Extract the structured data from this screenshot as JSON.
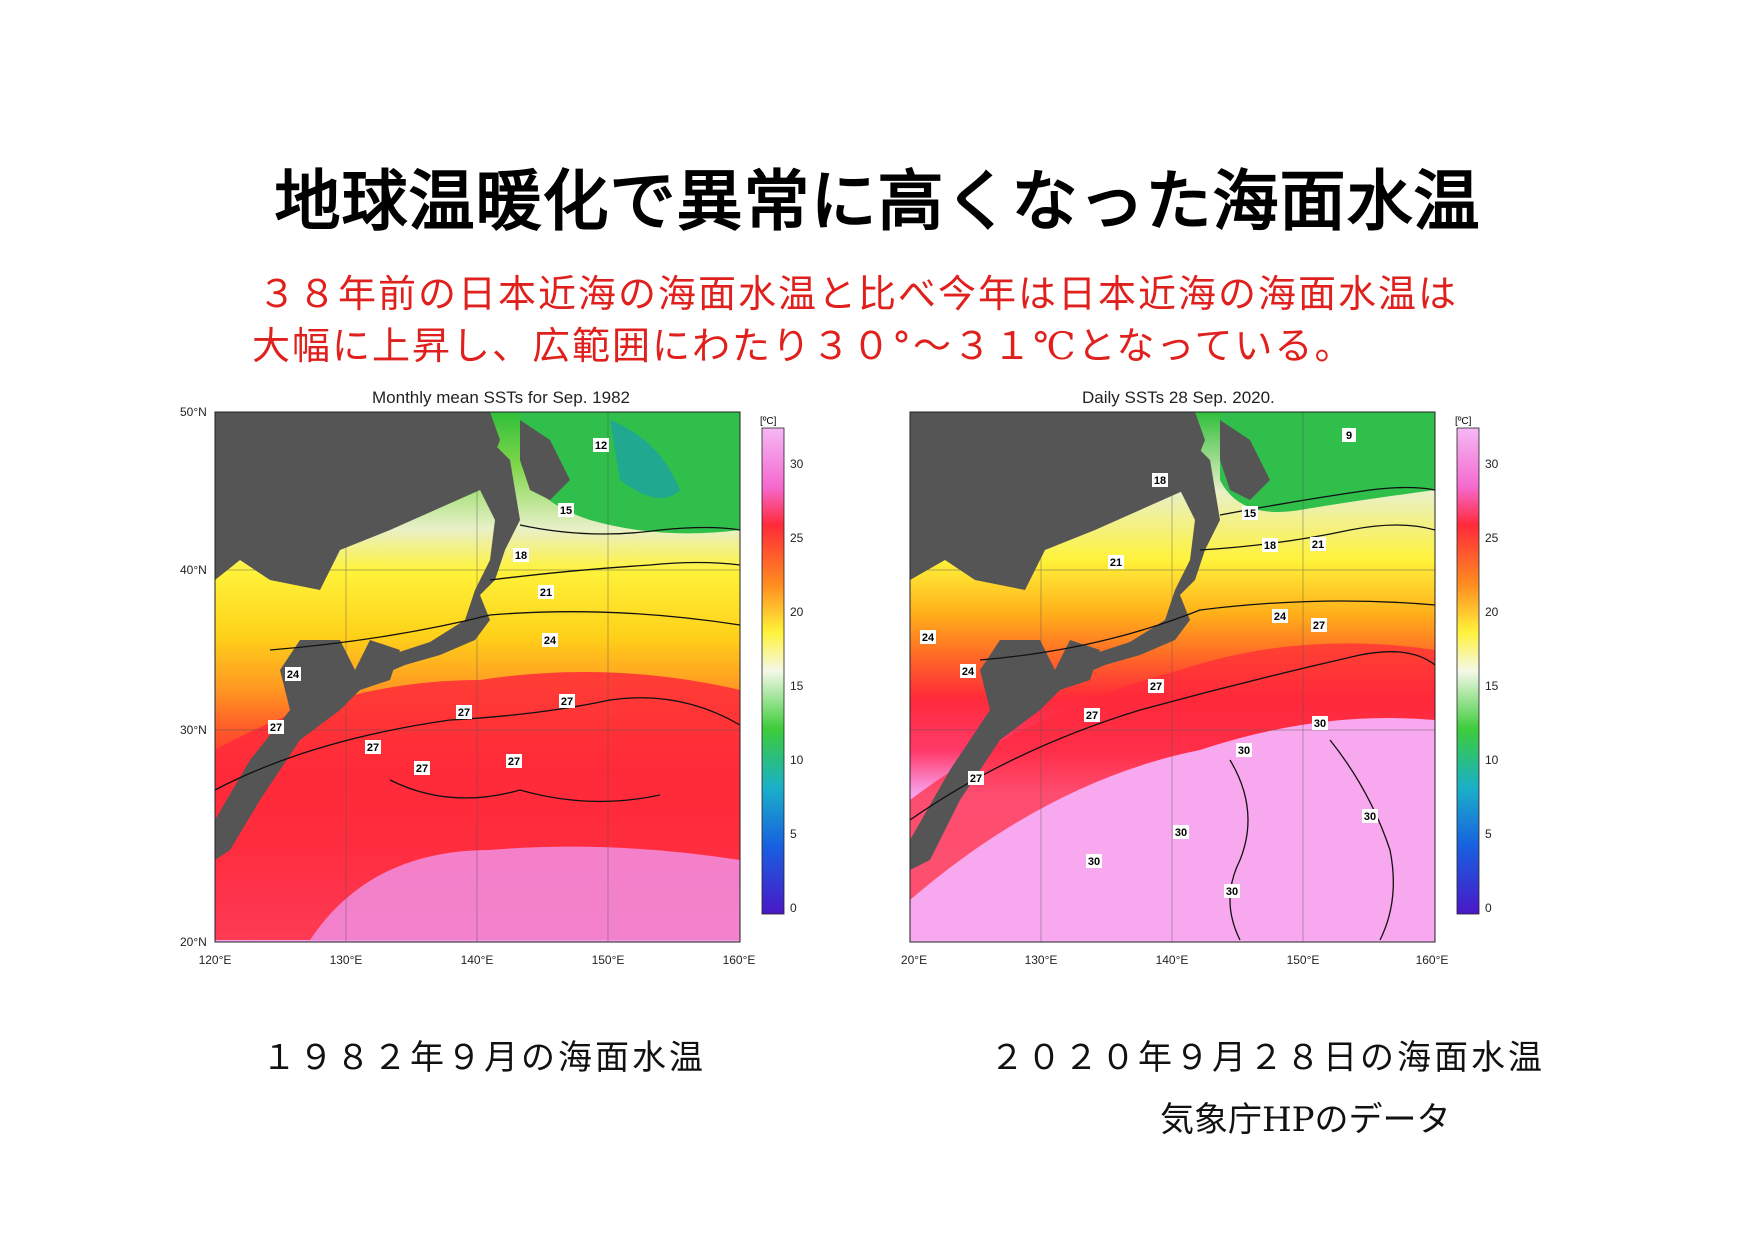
{
  "title": "地球温暖化で異常に高くなった海面水温",
  "subtitle": {
    "line1": "３８年前の日本近海の海面水温と比べ今年は日本近海の海面水温は",
    "line2": "大幅に上昇し、広範囲にわたり３０°～３１℃となっている。"
  },
  "maps": [
    {
      "title": "Monthly mean SSTs for Sep. 1982",
      "caption": "１９８２年９月の海面水温",
      "lat_labels": [
        "50°N",
        "40°N",
        "30°N",
        "20°N"
      ],
      "lon_labels": [
        "120°E",
        "130°E",
        "140°E",
        "150°E",
        "160°E"
      ],
      "contour_labels": [
        "12",
        "15",
        "18",
        "21",
        "24",
        "24",
        "27",
        "27",
        "27",
        "27",
        "27",
        "27"
      ]
    },
    {
      "title": "Daily SSTs 28 Sep. 2020.",
      "caption": "２０２０年９月２８日の海面水温",
      "lat_labels": [],
      "lon_labels": [
        "20°E",
        "130°E",
        "140°E",
        "150°E",
        "160°E"
      ],
      "contour_labels": [
        "9",
        "18",
        "15",
        "18",
        "21",
        "21",
        "24",
        "27",
        "24",
        "24",
        "27",
        "27",
        "27",
        "30",
        "30",
        "30",
        "30",
        "30",
        "30"
      ]
    }
  ],
  "colorbar": {
    "unit": "[ºC]",
    "ticks": [
      "30",
      "25",
      "20",
      "15",
      "10",
      "5",
      "0"
    ],
    "colors": [
      "#f5a0f0",
      "#ff2a3a",
      "#ff8a20",
      "#fff23a",
      "#3ccc3a",
      "#1ab0c8",
      "#1818c8"
    ]
  },
  "source": "気象庁HPのデータ",
  "colors": {
    "title": "#000000",
    "subtitle": "#e0201c",
    "land": "#555555"
  }
}
